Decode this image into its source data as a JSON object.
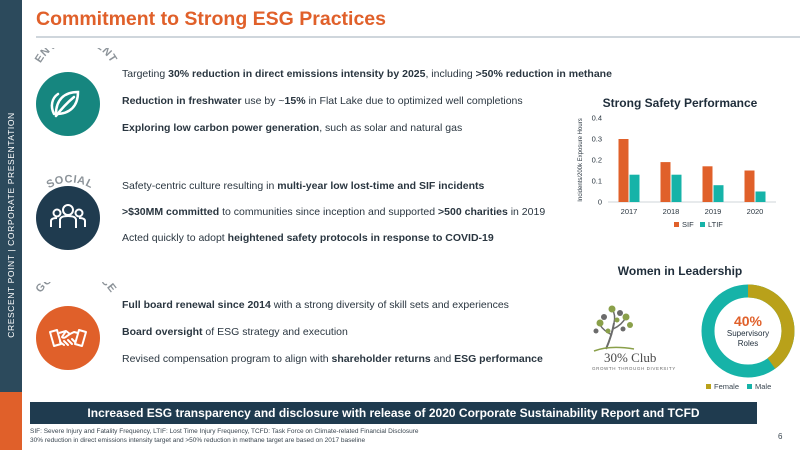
{
  "sidebar": {
    "text": "CRESCENT POINT   |   CORPORATE PRESENTATION"
  },
  "title": "Commitment to Strong ESG Practices",
  "sections": [
    {
      "label": "ENVIRONMENT",
      "icon": "leaf-icon",
      "color": "#16867f",
      "bullets": [
        [
          [
            "Targeting ",
            false
          ],
          [
            "30% reduction in direct emissions intensity by 2025",
            true
          ],
          [
            ", including ",
            false
          ],
          [
            ">50% reduction in methane",
            true
          ]
        ],
        [
          [
            "Reduction in freshwater",
            true
          ],
          [
            " use by ~",
            false
          ],
          [
            "15%",
            true
          ],
          [
            " in Flat Lake due to optimized well completions",
            false
          ]
        ],
        [
          [
            "Exploring low carbon power generation",
            true
          ],
          [
            ", such as solar and natural gas",
            false
          ]
        ]
      ]
    },
    {
      "label": "SOCIAL",
      "icon": "people-icon",
      "color": "#1f3b4f",
      "bullets": [
        [
          [
            "Safety-centric culture resulting in ",
            false
          ],
          [
            "multi-year low lost-time and SIF incidents",
            true
          ]
        ],
        [
          [
            ">$30MM committed",
            true
          ],
          [
            " to communities since inception and supported ",
            false
          ],
          [
            ">500 charities",
            true
          ],
          [
            " in 2019",
            false
          ]
        ],
        [
          [
            "Acted quickly to adopt ",
            false
          ],
          [
            "heightened safety protocols in response to COVID-19",
            true
          ]
        ]
      ]
    },
    {
      "label": "GOVERNANCE",
      "icon": "handshake-icon",
      "color": "#e0602a",
      "bullets": [
        [
          [
            "Full board renewal since 2014",
            true
          ],
          [
            " with a strong diversity of skill sets and experiences",
            false
          ]
        ],
        [
          [
            "Board oversight",
            true
          ],
          [
            " of ESG strategy and execution",
            false
          ]
        ],
        [
          [
            "Revised compensation program to align with ",
            false
          ],
          [
            "shareholder returns",
            true
          ],
          [
            " and ",
            false
          ],
          [
            "ESG performance",
            true
          ]
        ]
      ]
    }
  ],
  "chart_data": {
    "type": "bar",
    "title": "Strong Safety Performance",
    "ylabel": "Incidents/200k Exposure Hours",
    "xlabel": "",
    "categories": [
      "2017",
      "2018",
      "2019",
      "2020"
    ],
    "series": [
      {
        "name": "SIF",
        "color": "#e0602a",
        "values": [
          0.3,
          0.19,
          0.17,
          0.15
        ]
      },
      {
        "name": "LTIF",
        "color": "#16b3a8",
        "values": [
          0.13,
          0.13,
          0.08,
          0.05
        ]
      }
    ],
    "ylim": [
      0,
      0.4
    ],
    "yticks": [
      "0",
      "0.1",
      "0.2",
      "0.3",
      "0.4"
    ],
    "legend": "bottom",
    "grid": false
  },
  "women": {
    "title": "Women in Leadership",
    "logo_text": "30% Club",
    "logo_sub": "GROWTH THROUGH DIVERSITY",
    "percent": "40%",
    "label_line1": "Supervisory",
    "label_line2": "Roles",
    "female_fraction": 0.4,
    "legend": [
      {
        "name": "Female",
        "color": "#b9a11a"
      },
      {
        "name": "Male",
        "color": "#16b3a8"
      }
    ]
  },
  "banner": "Increased ESG transparency and disclosure with release of 2020 Corporate Sustainability Report and TCFD",
  "footnotes": [
    "SIF: Severe Injury and Fatality Frequency, LTIF: Lost Time Injury Frequency, TCFD: Task Force on Climate-related Financial Disclosure",
    "30% reduction in direct emissions intensity target and >50% reduction in methane target are based on 2017 baseline"
  ],
  "page_number": "6"
}
